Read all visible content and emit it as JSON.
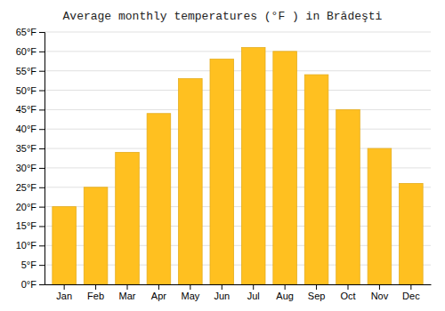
{
  "chart_data": {
    "type": "bar",
    "title": "Average monthly temperatures (°F ) in Brădeşti",
    "categories": [
      "Jan",
      "Feb",
      "Mar",
      "Apr",
      "May",
      "Jun",
      "Jul",
      "Aug",
      "Sep",
      "Oct",
      "Nov",
      "Dec"
    ],
    "values": [
      20,
      25,
      34,
      44,
      53,
      58,
      61,
      60,
      54,
      45,
      35,
      26
    ],
    "color": "#FFC020",
    "ylim": [
      0,
      65
    ],
    "yticks": [
      {
        "value": 0,
        "label": "0°F"
      },
      {
        "value": 5,
        "label": "5°F"
      },
      {
        "value": 10,
        "label": "10°F"
      },
      {
        "value": 15,
        "label": "15°F"
      },
      {
        "value": 20,
        "label": "20°F"
      },
      {
        "value": 25,
        "label": "25°F"
      },
      {
        "value": 30,
        "label": "30°F"
      },
      {
        "value": 35,
        "label": "35°F"
      },
      {
        "value": 40,
        "label": "40°F"
      },
      {
        "value": 45,
        "label": "45°F"
      },
      {
        "value": 50,
        "label": "50°F"
      },
      {
        "value": 55,
        "label": "55°F"
      },
      {
        "value": 60,
        "label": "60°F"
      },
      {
        "value": 65,
        "label": "65°F"
      }
    ],
    "grid": true
  }
}
